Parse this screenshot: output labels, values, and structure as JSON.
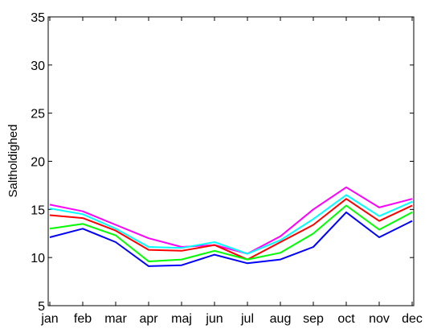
{
  "chart_data": {
    "type": "line",
    "title": "",
    "xlabel": "",
    "ylabel": "Saltholdighed",
    "ylim": [
      5,
      35
    ],
    "yticks": [
      5,
      10,
      15,
      20,
      25,
      30,
      35
    ],
    "grid": false,
    "categories": [
      "jan",
      "feb",
      "mar",
      "apr",
      "maj",
      "jun",
      "jul",
      "aug",
      "sep",
      "oct",
      "nov",
      "dec"
    ],
    "series": [
      {
        "color": "#ff00ff",
        "values": [
          15.5,
          14.8,
          13.4,
          12.0,
          11.1,
          11.3,
          10.4,
          12.2,
          15.0,
          17.3,
          15.2,
          16.1
        ]
      },
      {
        "color": "#00ffff",
        "values": [
          15.1,
          14.5,
          13.0,
          11.1,
          11.0,
          11.6,
          10.4,
          11.8,
          14.0,
          16.5,
          14.3,
          15.8
        ]
      },
      {
        "color": "#ff0000",
        "values": [
          14.4,
          14.1,
          12.8,
          10.8,
          10.7,
          11.3,
          9.8,
          11.6,
          13.4,
          16.1,
          13.8,
          15.4
        ]
      },
      {
        "color": "#00ff00",
        "values": [
          13.0,
          13.5,
          12.3,
          9.6,
          9.8,
          10.7,
          9.8,
          10.5,
          12.5,
          15.4,
          12.9,
          14.7
        ]
      },
      {
        "color": "#0000ff",
        "values": [
          12.1,
          13.0,
          11.6,
          9.1,
          9.2,
          10.3,
          9.4,
          9.8,
          11.1,
          14.7,
          12.1,
          13.8
        ]
      }
    ]
  }
}
